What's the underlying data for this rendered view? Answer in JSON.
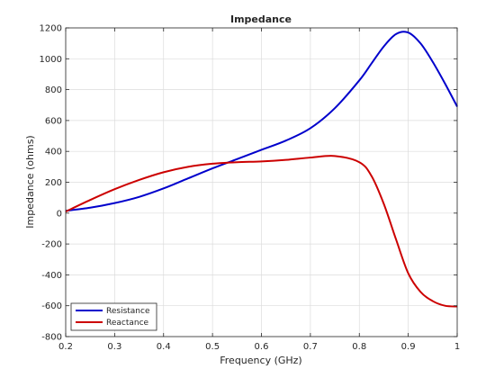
{
  "chart_data": {
    "type": "line",
    "title": "Impedance",
    "xlabel": "Frequency (GHz)",
    "ylabel": "Impedance (ohms)",
    "xlim": [
      0.2,
      1.0
    ],
    "ylim": [
      -800,
      1200
    ],
    "x_ticks": [
      "0.2",
      "0.3",
      "0.4",
      "0.5",
      "0.6",
      "0.7",
      "0.8",
      "0.9",
      "1"
    ],
    "y_ticks": [
      "-800",
      "-600",
      "-400",
      "-200",
      "0",
      "200",
      "400",
      "600",
      "800",
      "1000",
      "1200"
    ],
    "grid": true,
    "legend_position": "bottom-left",
    "x": [
      0.2,
      0.25,
      0.3,
      0.35,
      0.4,
      0.45,
      0.5,
      0.55,
      0.6,
      0.65,
      0.7,
      0.75,
      0.8,
      0.825,
      0.85,
      0.875,
      0.9,
      0.925,
      0.95,
      0.975,
      1.0
    ],
    "series": [
      {
        "name": "Resistance",
        "color": "#0000cc",
        "values": [
          15,
          35,
          65,
          105,
          160,
          225,
          290,
          350,
          410,
          470,
          550,
          680,
          860,
          970,
          1080,
          1160,
          1170,
          1100,
          980,
          840,
          690
        ]
      },
      {
        "name": "Reactance",
        "color": "#cc0000",
        "values": [
          10,
          85,
          155,
          215,
          265,
          300,
          320,
          330,
          335,
          345,
          360,
          370,
          330,
          240,
          60,
          -170,
          -390,
          -510,
          -570,
          -600,
          -605
        ]
      }
    ]
  }
}
